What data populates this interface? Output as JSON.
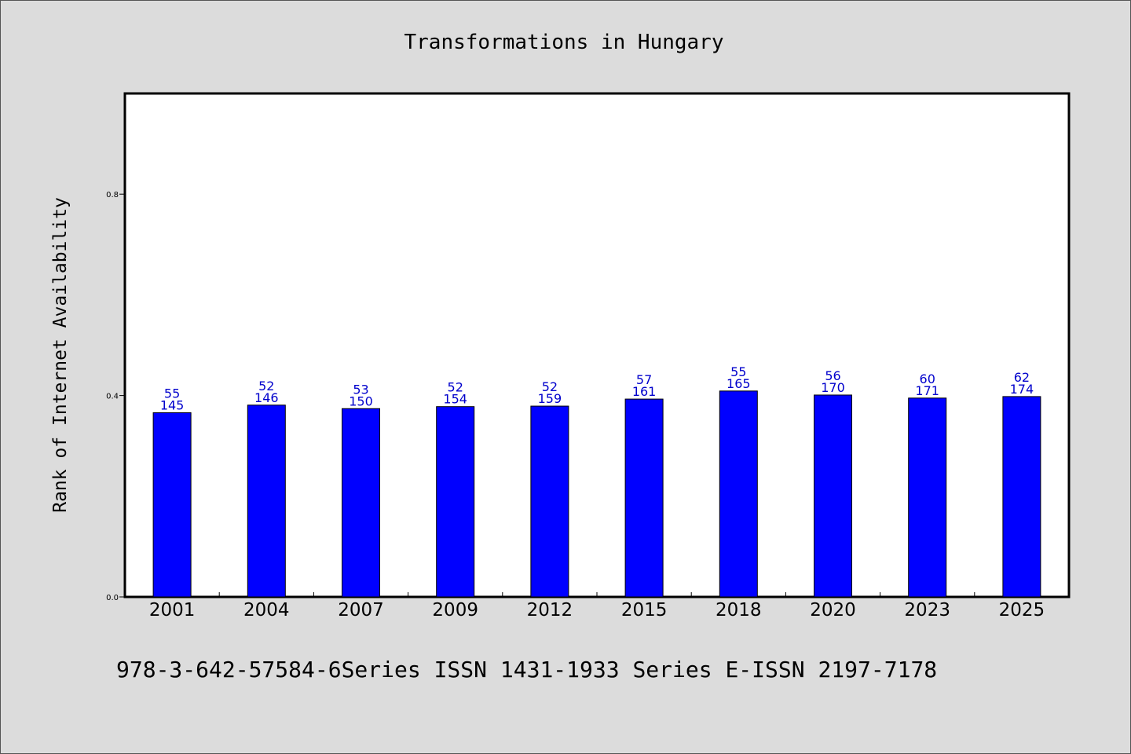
{
  "chart_data": {
    "type": "bar",
    "title": "Transformations in Hungary",
    "ylabel": "Rank of Internet Availability",
    "xlabel": "",
    "footer": "978-3-642-57584-6Series ISSN 1431-1933 Series E-ISSN 2197-7178",
    "ylim": [
      0,
      1.0
    ],
    "yticks": [
      0.0,
      0.4,
      0.8
    ],
    "ytick_labels": [
      "0.0",
      "0.4",
      "0.8"
    ],
    "categories": [
      "2001",
      "2004",
      "2007",
      "2009",
      "2012",
      "2015",
      "2018",
      "2020",
      "2023",
      "2025"
    ],
    "values": [
      0.366,
      0.381,
      0.374,
      0.378,
      0.379,
      0.393,
      0.409,
      0.401,
      0.395,
      0.398
    ],
    "labels_top": [
      "55",
      "52",
      "53",
      "52",
      "52",
      "57",
      "55",
      "56",
      "60",
      "62"
    ],
    "labels_bottom": [
      "145",
      "146",
      "150",
      "154",
      "159",
      "161",
      "165",
      "170",
      "171",
      "174"
    ],
    "grid": false,
    "legend": "none",
    "colors": {
      "bar": "#0000ff",
      "bar_edge": "#000000",
      "label": "#0000cc",
      "background": "#dcdcdc",
      "plot_bg": "#ffffff"
    }
  }
}
